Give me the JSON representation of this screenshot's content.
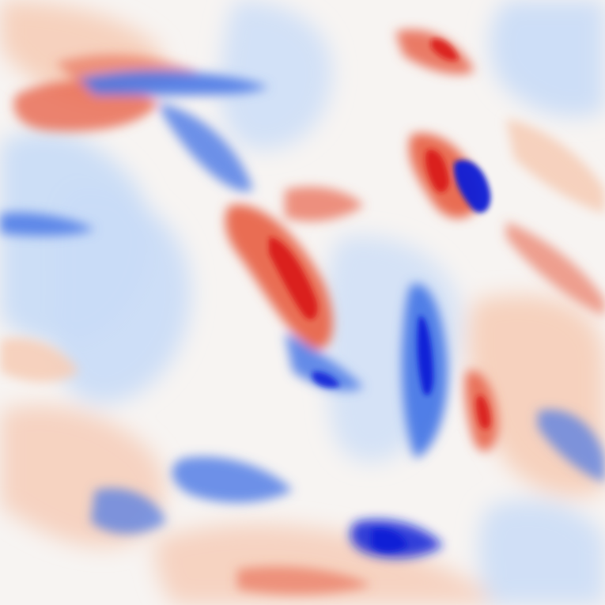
{
  "image": {
    "kind": "turbulence-vorticity-field",
    "colormap": "diverging",
    "colors": {
      "strong_negative": "#0a1fd6",
      "negative": "#4a78e6",
      "weak_negative": "#c9dcf7",
      "neutral": "#f7f4f2",
      "weak_positive": "#f6cdb8",
      "positive": "#e8654c",
      "strong_positive": "#d81414"
    }
  }
}
